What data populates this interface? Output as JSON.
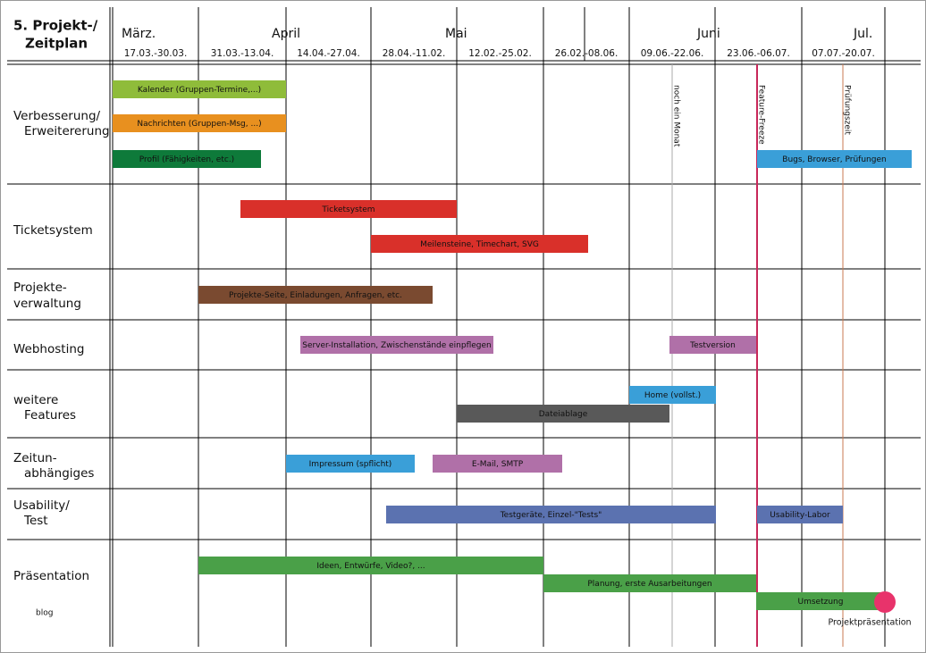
{
  "header": {
    "title": [
      "5. Projekt-/",
      "Zeitplan"
    ],
    "months": [
      "März.",
      "April",
      "Mai",
      "Juni",
      "Jul."
    ],
    "periods": [
      "17.03.-30.03.",
      "31.03.-13.04.",
      "14.04.-27.04.",
      "28.04.-11.02.",
      "12.02.-25.02.",
      "26.02.-08.06.",
      "09.06.-22.06.",
      "23.06.-06.07.",
      "07.07.-20.07."
    ]
  },
  "markers": [
    "noch ein Monat",
    "Feature-Freeze",
    "Prüfungszeit"
  ],
  "rows": [
    {
      "label": [
        "Verbesserung/",
        "Erweitererung"
      ],
      "tasks": [
        "Kalender (Gruppen-Termine,...)",
        "Nachrichten (Gruppen-Msg, ...)",
        "Profil (Fähigkeiten, etc.)",
        "Bugs, Browser, Prüfungen"
      ]
    },
    {
      "label": [
        "Ticketsystem"
      ],
      "tasks": [
        "Ticketsystem",
        "Meilensteine, Timechart, SVG"
      ]
    },
    {
      "label": [
        "Projekte-",
        "verwaltung"
      ],
      "tasks": [
        "Projekte-Seite, Einladungen, Anfragen, etc."
      ]
    },
    {
      "label": [
        "Webhosting"
      ],
      "tasks": [
        "Server-Installation, Zwischenstände einpflegen",
        "Testversion"
      ]
    },
    {
      "label": [
        "weitere",
        "Features"
      ],
      "tasks": [
        "Home (vollst.)",
        "Dateiablage"
      ]
    },
    {
      "label": [
        "Zeitun-",
        "abhängiges"
      ],
      "tasks": [
        "Impressum (spflicht)",
        "E-Mail, SMTP"
      ]
    },
    {
      "label": [
        "Usability/",
        "Test"
      ],
      "tasks": [
        "Testgeräte, Einzel-\"Tests\"",
        "Usability-Labor"
      ]
    },
    {
      "label": [
        "Präsentation"
      ],
      "tasks": [
        "Ideen, Entwürfe, Video?, ...",
        "Planung, erste Ausarbeitungen",
        "Umsetzung"
      ]
    }
  ],
  "milestone": "Projektpräsentation",
  "watermark": "blog"
}
